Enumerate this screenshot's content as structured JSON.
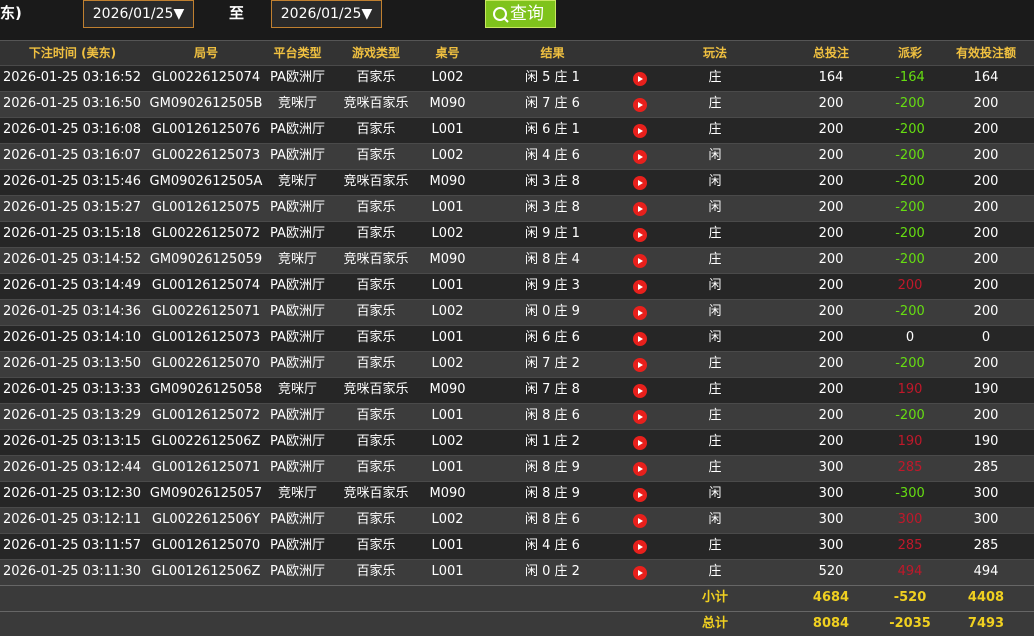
{
  "toolbar": {
    "tz_label": "东)",
    "date_from": "2026/01/25▼",
    "to_label": "至",
    "date_to": "2026/01/25▼",
    "query_button": "查询"
  },
  "table": {
    "headers": [
      "下注时间 (美东)",
      "局号",
      "平台类型",
      "游戏类型",
      "桌号",
      "结果",
      "玩法",
      "总投注",
      "派彩",
      "有效投注额"
    ],
    "rows": [
      [
        "2026-01-25 03:16:52",
        "GL00226125074",
        "PA欧洲厅",
        "百家乐",
        "L002",
        "闲 5 庄 1",
        "庄",
        164,
        -164,
        164
      ],
      [
        "2026-01-25 03:16:50",
        "GM0902612505B",
        "竞咪厅",
        "竞咪百家乐",
        "M090",
        "闲 7 庄 6",
        "庄",
        200,
        -200,
        200
      ],
      [
        "2026-01-25 03:16:08",
        "GL00126125076",
        "PA欧洲厅",
        "百家乐",
        "L001",
        "闲 6 庄 1",
        "庄",
        200,
        -200,
        200
      ],
      [
        "2026-01-25 03:16:07",
        "GL00226125073",
        "PA欧洲厅",
        "百家乐",
        "L002",
        "闲 4 庄 6",
        "闲",
        200,
        -200,
        200
      ],
      [
        "2026-01-25 03:15:46",
        "GM0902612505A",
        "竞咪厅",
        "竞咪百家乐",
        "M090",
        "闲 3 庄 8",
        "闲",
        200,
        -200,
        200
      ],
      [
        "2026-01-25 03:15:27",
        "GL00126125075",
        "PA欧洲厅",
        "百家乐",
        "L001",
        "闲 3 庄 8",
        "闲",
        200,
        -200,
        200
      ],
      [
        "2026-01-25 03:15:18",
        "GL00226125072",
        "PA欧洲厅",
        "百家乐",
        "L002",
        "闲 9 庄 1",
        "庄",
        200,
        -200,
        200
      ],
      [
        "2026-01-25 03:14:52",
        "GM09026125059",
        "竞咪厅",
        "竞咪百家乐",
        "M090",
        "闲 8 庄 4",
        "庄",
        200,
        -200,
        200
      ],
      [
        "2026-01-25 03:14:49",
        "GL00126125074",
        "PA欧洲厅",
        "百家乐",
        "L001",
        "闲 9 庄 3",
        "闲",
        200,
        200,
        200
      ],
      [
        "2026-01-25 03:14:36",
        "GL00226125071",
        "PA欧洲厅",
        "百家乐",
        "L002",
        "闲 0 庄 9",
        "闲",
        200,
        -200,
        200
      ],
      [
        "2026-01-25 03:14:10",
        "GL00126125073",
        "PA欧洲厅",
        "百家乐",
        "L001",
        "闲 6 庄 6",
        "闲",
        200,
        0,
        0
      ],
      [
        "2026-01-25 03:13:50",
        "GL00226125070",
        "PA欧洲厅",
        "百家乐",
        "L002",
        "闲 7 庄 2",
        "庄",
        200,
        -200,
        200
      ],
      [
        "2026-01-25 03:13:33",
        "GM09026125058",
        "竞咪厅",
        "竞咪百家乐",
        "M090",
        "闲 7 庄 8",
        "庄",
        200,
        190,
        190
      ],
      [
        "2026-01-25 03:13:29",
        "GL00126125072",
        "PA欧洲厅",
        "百家乐",
        "L001",
        "闲 8 庄 6",
        "庄",
        200,
        -200,
        200
      ],
      [
        "2026-01-25 03:13:15",
        "GL0022612506Z",
        "PA欧洲厅",
        "百家乐",
        "L002",
        "闲 1 庄 2",
        "庄",
        200,
        190,
        190
      ],
      [
        "2026-01-25 03:12:44",
        "GL00126125071",
        "PA欧洲厅",
        "百家乐",
        "L001",
        "闲 8 庄 9",
        "庄",
        300,
        285,
        285
      ],
      [
        "2026-01-25 03:12:30",
        "GM09026125057",
        "竞咪厅",
        "竞咪百家乐",
        "M090",
        "闲 8 庄 9",
        "闲",
        300,
        -300,
        300
      ],
      [
        "2026-01-25 03:12:11",
        "GL0022612506Y",
        "PA欧洲厅",
        "百家乐",
        "L002",
        "闲 8 庄 6",
        "闲",
        300,
        300,
        300
      ],
      [
        "2026-01-25 03:11:57",
        "GL00126125070",
        "PA欧洲厅",
        "百家乐",
        "L001",
        "闲 4 庄 6",
        "庄",
        300,
        285,
        285
      ],
      [
        "2026-01-25 03:11:30",
        "GL0012612506Z",
        "PA欧洲厅",
        "百家乐",
        "L001",
        "闲 0 庄 2",
        "庄",
        520,
        494,
        494
      ]
    ],
    "subtotal": {
      "label": "小计",
      "total_bet": 4684,
      "payout": -520,
      "valid_bet": 4408
    },
    "total": {
      "label": "总计",
      "total_bet": 8084,
      "payout": -2035,
      "valid_bet": 7493
    }
  }
}
